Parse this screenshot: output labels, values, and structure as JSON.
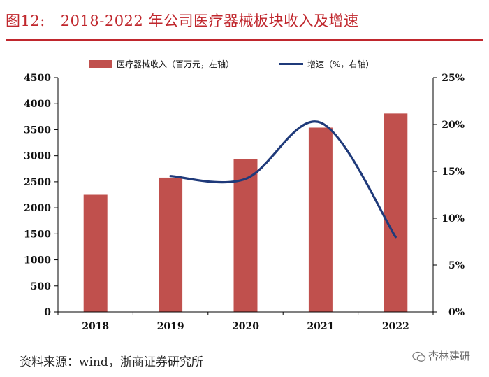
{
  "header": {
    "figure_label": "图12:",
    "title": "2018-2022 年公司医疗器械板块收入及增速"
  },
  "footer": {
    "source": "资料来源：wind，浙商证券研究所",
    "watermark": "杏林建研"
  },
  "chart_data": {
    "type": "bar",
    "categories": [
      "2018",
      "2019",
      "2020",
      "2021",
      "2022"
    ],
    "series": [
      {
        "name": "医疗器械收入（百万元，左轴）",
        "type": "bar",
        "axis": "left",
        "color": "#c0504d",
        "values": [
          2250,
          2580,
          2930,
          3540,
          3810
        ]
      },
      {
        "name": "增速（%，右轴）",
        "type": "line",
        "axis": "right",
        "color": "#1f3a7a",
        "values": [
          null,
          14.5,
          14.2,
          20.2,
          8.0
        ]
      }
    ],
    "y_left": {
      "min": 0,
      "max": 4500,
      "ticks": [
        "0",
        "500",
        "1000",
        "1500",
        "2000",
        "2500",
        "3000",
        "3500",
        "4000",
        "4500"
      ]
    },
    "y_right": {
      "min": 0,
      "max": 25,
      "ticks": [
        "0%",
        "5%",
        "10%",
        "15%",
        "20%",
        "25%"
      ]
    },
    "legend": "top",
    "grid": false
  }
}
